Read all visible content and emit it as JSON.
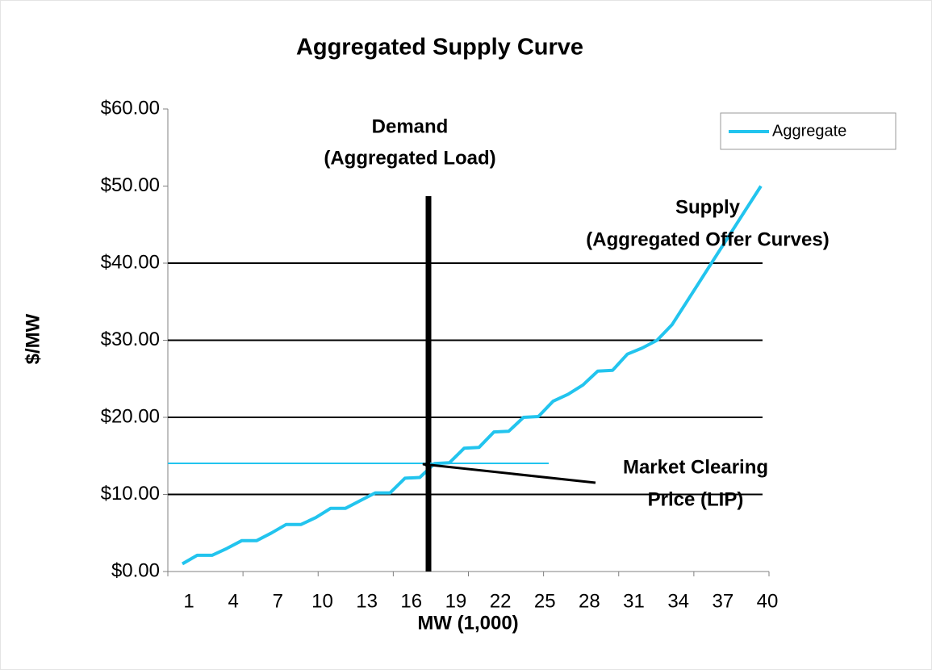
{
  "chart_data": {
    "type": "line",
    "title": "Aggregated Supply Curve",
    "x_label": "MW (1,000)",
    "y_label": "$/MW",
    "categories": [
      "1",
      null,
      null,
      "4",
      null,
      null,
      "7",
      null,
      null,
      "10",
      null,
      null,
      "13",
      null,
      null,
      "16",
      null,
      null,
      "19",
      null,
      null,
      "22",
      null,
      null,
      "25",
      null,
      null,
      "28",
      null,
      null,
      "31",
      null,
      null,
      "34",
      null,
      null,
      "37",
      null,
      null,
      "40"
    ],
    "series": [
      {
        "name": "Aggregate",
        "color": "#22c4ee",
        "values": [
          1,
          2.1,
          2.1,
          3,
          4,
          4,
          5,
          6.1,
          6.1,
          7,
          8.2,
          8.2,
          9.2,
          10.2,
          10.2,
          12.1,
          12.2,
          14,
          14.1,
          16,
          16.1,
          18.1,
          18.2,
          20,
          20.1,
          22.1,
          23,
          24.2,
          26,
          26.1,
          28.2,
          29,
          30,
          32,
          35,
          38,
          41,
          44,
          47,
          50
        ]
      }
    ],
    "ylim": [
      0,
      60
    ],
    "yticks": [
      {
        "value": 0,
        "label": "$0.00"
      },
      {
        "value": 10,
        "label": "$10.00"
      },
      {
        "value": 20,
        "label": "$20.00"
      },
      {
        "value": 30,
        "label": "$30.00"
      },
      {
        "value": 40,
        "label": "$40.00"
      },
      {
        "value": 50,
        "label": "$50.00"
      },
      {
        "value": 60,
        "label": "$60.00"
      }
    ],
    "reference_lines": [
      10,
      20,
      30,
      40
    ],
    "legend": "top-right",
    "annotations": [
      {
        "lines": [
          "Demand",
          "(Aggregated Load)"
        ]
      },
      {
        "lines": [
          "Supply",
          "(Aggregated Offer Curves)"
        ]
      },
      {
        "lines": [
          "Market Clearing",
          "Price (LIP)"
        ]
      }
    ]
  }
}
